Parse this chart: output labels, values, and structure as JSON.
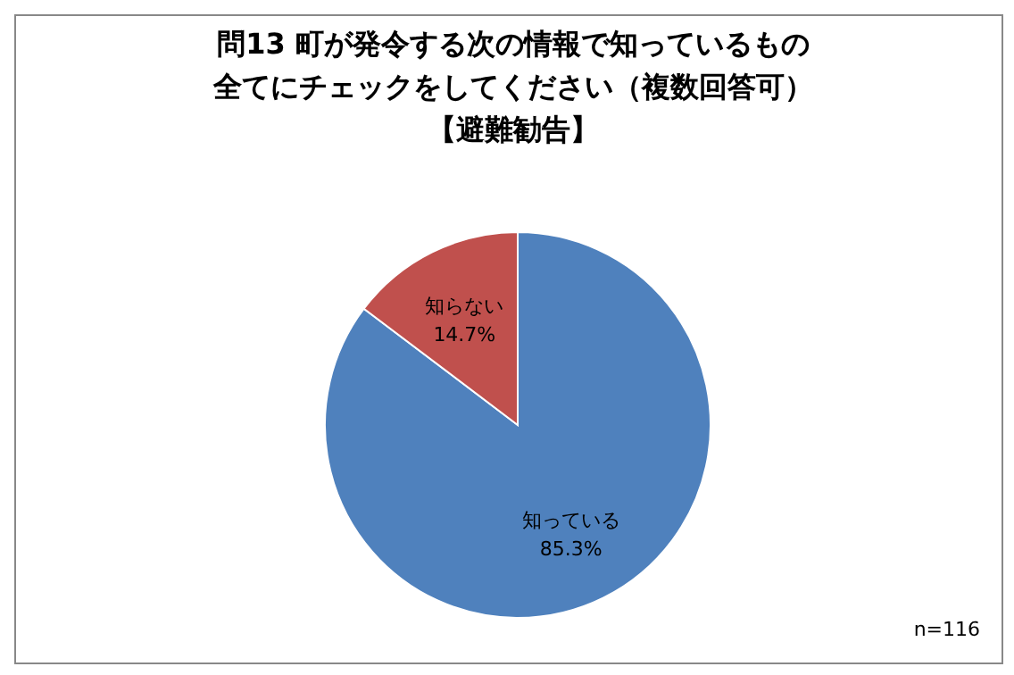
{
  "chart_data": {
    "type": "pie",
    "title": "問13  町が発令する次の情報で知っているもの全てにチェックをしてください（複数回答可）【避難勧告】",
    "categories": [
      "知っている",
      "知らない"
    ],
    "values": [
      85.3,
      14.7
    ],
    "value_labels": [
      "85.3%",
      "14.7%"
    ],
    "colors": [
      "#4f81bd",
      "#c0504d"
    ],
    "annotations": [
      "n=116"
    ]
  }
}
